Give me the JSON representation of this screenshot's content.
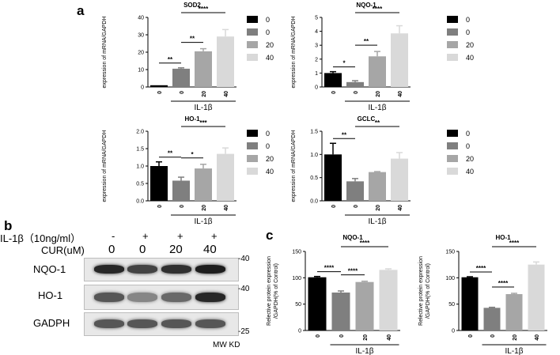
{
  "panel_labels": {
    "a": "a",
    "b": "b",
    "c": "c"
  },
  "legend_entries": [
    "0",
    "0",
    "20",
    "40"
  ],
  "colors": {
    "black": "#000000",
    "dark_gray": "#7f7f7f",
    "mid_gray": "#a6a6a6",
    "light_gray": "#d9d9d9"
  },
  "chart_data": [
    {
      "type": "bar",
      "title": "SOD2",
      "ylabel": "expression of mRNA/GAPDH",
      "categories": [
        "0",
        "0",
        "20",
        "40"
      ],
      "group_label": "IL-1β",
      "values": [
        1,
        10.5,
        20.5,
        29
      ],
      "errors": [
        0,
        0.5,
        1.5,
        4
      ],
      "ylim": [
        0,
        40
      ],
      "yticks": [
        0,
        10,
        20,
        30,
        40
      ],
      "significance": [
        {
          "from": 0,
          "to": 1,
          "label": "**"
        },
        {
          "from": 1,
          "to": 2,
          "label": "**"
        },
        {
          "from": 1,
          "to": 3,
          "label": "****"
        }
      ],
      "legend": true
    },
    {
      "type": "bar",
      "title": "NQO-1",
      "ylabel": "expression of mRNA/GAPDH",
      "categories": [
        "0",
        "0",
        "20",
        "40"
      ],
      "group_label": "IL-1β",
      "values": [
        1.0,
        0.35,
        2.2,
        3.85
      ],
      "errors": [
        0.1,
        0.1,
        0.35,
        0.55
      ],
      "ylim": [
        0,
        5
      ],
      "yticks": [
        0,
        1,
        2,
        3,
        4,
        5
      ],
      "significance": [
        {
          "from": 0,
          "to": 1,
          "label": "*"
        },
        {
          "from": 1,
          "to": 2,
          "label": "**"
        },
        {
          "from": 1,
          "to": 3,
          "label": "****"
        }
      ],
      "legend": true
    },
    {
      "type": "bar",
      "title": "HO-1",
      "ylabel": "expression of mRNA/GAPDH",
      "categories": [
        "0",
        "0",
        "20",
        "40"
      ],
      "group_label": "IL-1β",
      "values": [
        1.0,
        0.58,
        0.93,
        1.35
      ],
      "errors": [
        0.12,
        0.1,
        0.12,
        0.17
      ],
      "ylim": [
        0,
        2.0
      ],
      "yticks": [
        0.0,
        0.5,
        1.0,
        1.5,
        2.0
      ],
      "ytick_labels": [
        "0.0",
        "0.5",
        "1.0",
        "1.5",
        "2.0"
      ],
      "significance": [
        {
          "from": 0,
          "to": 1,
          "label": "**"
        },
        {
          "from": 1,
          "to": 2,
          "label": "*"
        },
        {
          "from": 1,
          "to": 3,
          "label": "***"
        }
      ],
      "legend": true
    },
    {
      "type": "bar",
      "title": "GCLC",
      "ylabel": "expression of mRNA/GAPDH",
      "categories": [
        "0",
        "0",
        "20",
        "40"
      ],
      "group_label": "IL-1β",
      "values": [
        1.0,
        0.42,
        0.62,
        0.91
      ],
      "errors": [
        0.24,
        0.06,
        0.01,
        0.13
      ],
      "ylim": [
        0,
        1.5
      ],
      "yticks": [
        0.0,
        0.5,
        1.0,
        1.5
      ],
      "ytick_labels": [
        "0.0",
        "0.5",
        "1.0",
        "1.5"
      ],
      "significance": [
        {
          "from": 0,
          "to": 1,
          "label": "**"
        },
        {
          "from": 1,
          "to": 3,
          "label": "**"
        }
      ],
      "legend": true
    },
    {
      "type": "bar",
      "title": "NQO-1",
      "ylabel": "Relective protein expression /GAPDH(% of Control)",
      "ylabel_lines": [
        "Relective protein expression",
        "/GAPDH(% of Control)"
      ],
      "categories": [
        "0",
        "0",
        "20",
        "40"
      ],
      "group_label": "IL-1β",
      "values": [
        101,
        72,
        92,
        115
      ],
      "errors": [
        1.5,
        3,
        1.5,
        2
      ],
      "ylim": [
        0,
        150
      ],
      "yticks": [
        0,
        50,
        100,
        150
      ],
      "significance": [
        {
          "from": 0,
          "to": 1,
          "label": "****"
        },
        {
          "from": 1,
          "to": 2,
          "label": "****"
        },
        {
          "from": 1,
          "to": 3,
          "label": "****"
        }
      ],
      "legend": false
    },
    {
      "type": "bar",
      "title": "HO-1",
      "ylabel": "Relective protein expression /GAPDH(% of Control)",
      "ylabel_lines": [
        "Relective protein expression",
        "/GAPDH(% of Control)"
      ],
      "categories": [
        "0",
        "0",
        "20",
        "40"
      ],
      "group_label": "IL-1β",
      "values": [
        101,
        43,
        69,
        125
      ],
      "errors": [
        1,
        1,
        1.5,
        5
      ],
      "ylim": [
        0,
        150
      ],
      "yticks": [
        0,
        50,
        100,
        150
      ],
      "significance": [
        {
          "from": 0,
          "to": 1,
          "label": "****"
        },
        {
          "from": 1,
          "to": 2,
          "label": "****"
        },
        {
          "from": 1,
          "to": 3,
          "label": "****"
        }
      ],
      "legend": false
    }
  ],
  "western_blot": {
    "row_labels": {
      "il1b": "IL-1β（10ng/ml）",
      "cur": "CUR(uM)"
    },
    "il1b_values": [
      "-",
      "+",
      "+",
      "+"
    ],
    "cur_values": [
      "0",
      "0",
      "20",
      "40"
    ],
    "proteins": [
      "NQO-1",
      "HO-1",
      "GADPH"
    ],
    "mw_markers": [
      "-40",
      "-40",
      "-25"
    ],
    "mw_unit": "MW KD",
    "band_intensity": {
      "NQO-1": [
        0.85,
        0.7,
        0.8,
        0.9
      ],
      "HO-1": [
        0.6,
        0.35,
        0.5,
        0.85
      ],
      "GADPH": [
        0.6,
        0.6,
        0.6,
        0.6
      ]
    }
  }
}
